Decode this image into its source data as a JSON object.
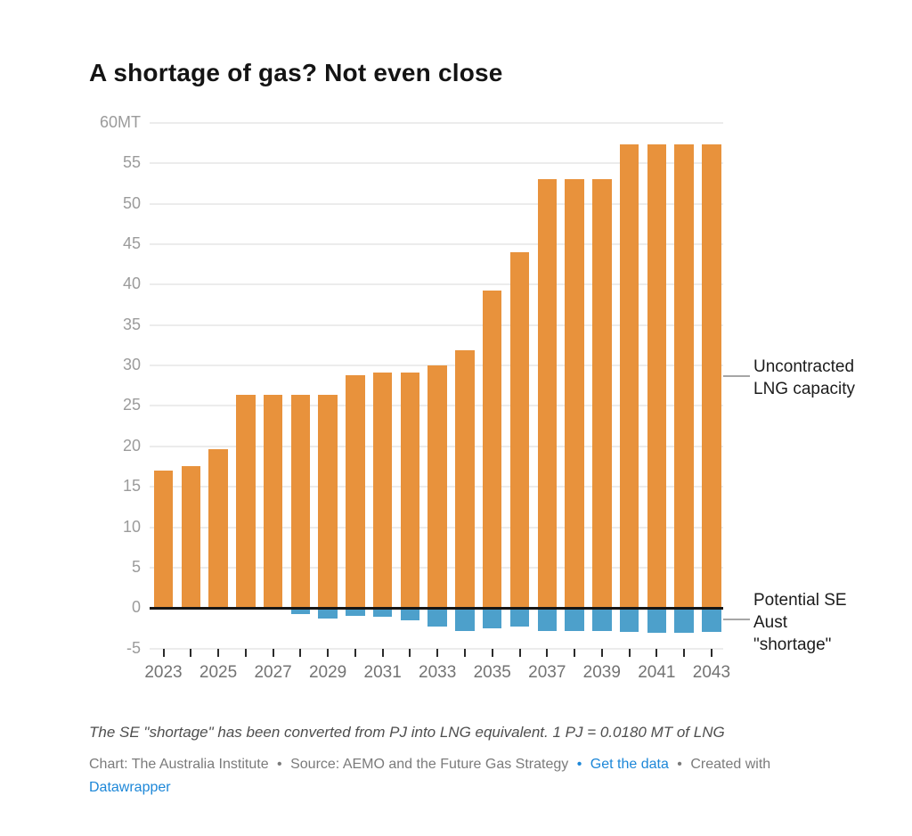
{
  "title": "A shortage of gas? Not even close",
  "colors": {
    "orange": "#E8923C",
    "blue": "#4DA0CB",
    "grid": "#ECECEC",
    "zero_line": "#161616",
    "y_label": "#9B9B9B",
    "x_label": "#737373",
    "annotation_text": "#1C1C1C",
    "connector": "#A6A6A6",
    "link_blue": "#1D87D8"
  },
  "chart_data": {
    "type": "bar",
    "title": "A shortage of gas? Not even close",
    "x": [
      2023,
      2024,
      2025,
      2026,
      2027,
      2028,
      2029,
      2030,
      2031,
      2032,
      2033,
      2034,
      2035,
      2036,
      2037,
      2038,
      2039,
      2040,
      2041,
      2042,
      2043
    ],
    "series": [
      {
        "name": "Uncontracted LNG capacity",
        "color": "#E8923C",
        "values": [
          17.0,
          17.6,
          19.6,
          26.4,
          26.4,
          26.4,
          26.4,
          28.8,
          29.1,
          29.1,
          30.0,
          31.9,
          39.3,
          44.0,
          53.0,
          53.0,
          53.0,
          57.3,
          57.3,
          57.3,
          57.3
        ]
      },
      {
        "name": "Potential SE Aust \"shortage\"",
        "color": "#4DA0CB",
        "values": [
          0,
          0,
          0,
          0,
          0,
          -0.8,
          -1.3,
          -1.0,
          -1.1,
          -1.5,
          -2.3,
          -2.8,
          -2.5,
          -2.3,
          -2.8,
          -2.9,
          -2.8,
          -3.0,
          -3.1,
          -3.1,
          -3.0
        ]
      }
    ],
    "ylim": [
      -5,
      60
    ],
    "ylabel_unit": "MT",
    "grid": true,
    "legend_position": "right-annotations",
    "y_ticks": [
      {
        "value": 60,
        "label": "60MT"
      },
      {
        "value": 55,
        "label": "55"
      },
      {
        "value": 50,
        "label": "50"
      },
      {
        "value": 45,
        "label": "45"
      },
      {
        "value": 40,
        "label": "40"
      },
      {
        "value": 35,
        "label": "35"
      },
      {
        "value": 30,
        "label": "30"
      },
      {
        "value": 25,
        "label": "25"
      },
      {
        "value": 20,
        "label": "20"
      },
      {
        "value": 15,
        "label": "15"
      },
      {
        "value": 10,
        "label": "10"
      },
      {
        "value": 5,
        "label": "5"
      },
      {
        "value": 0,
        "label": "0"
      },
      {
        "value": -5,
        "label": "-5"
      }
    ],
    "x_labeled_years": [
      2023,
      2025,
      2027,
      2029,
      2031,
      2033,
      2035,
      2037,
      2039,
      2041,
      2043
    ]
  },
  "annotations": {
    "uncontracted": {
      "line1": "Uncontracted",
      "line2": "LNG capacity"
    },
    "potential": {
      "line1": "Potential SE",
      "line2": "Aust",
      "line3": "\"shortage\""
    }
  },
  "footer": {
    "note": "The SE \"shortage\" has been converted from PJ into LNG equivalent. 1 PJ = 0.0180 MT of LNG",
    "credit_chart": "Chart: The Australia Institute",
    "sep1": "•",
    "credit_source": "Source: AEMO and the Future Gas Strategy",
    "sep2": "•",
    "link_get_data": "Get the data",
    "sep3": "•",
    "credit_created": "Created with",
    "link_datawrapper": "Datawrapper"
  }
}
